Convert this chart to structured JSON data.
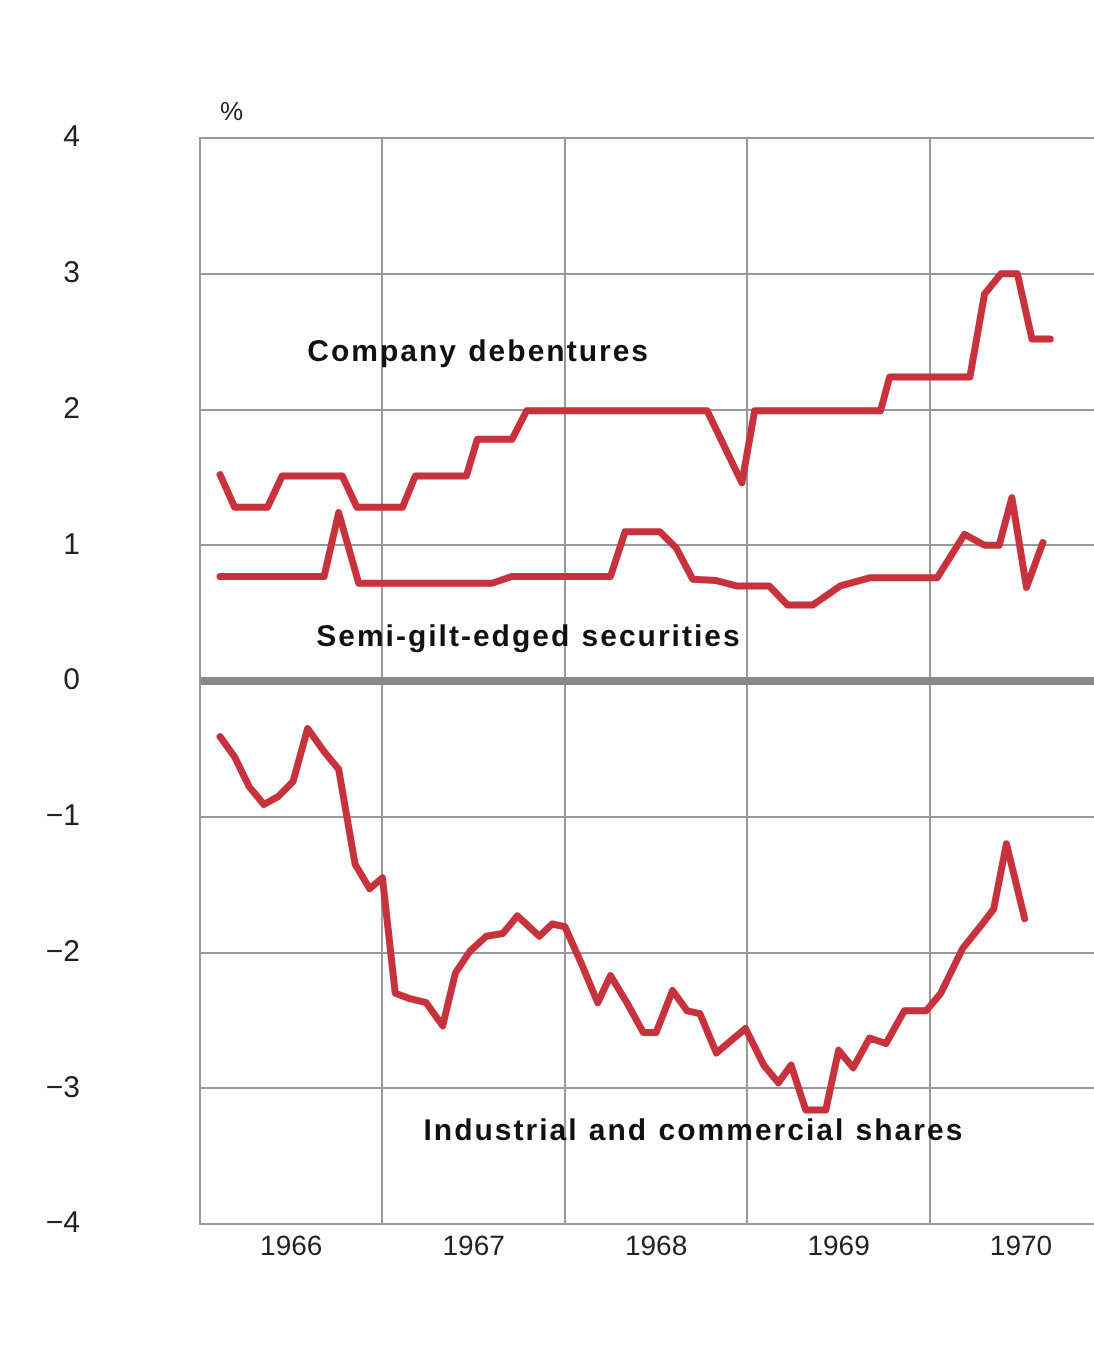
{
  "chart_data": {
    "type": "line",
    "ylabel": "%",
    "xlim": [
      1966,
      1970.9
    ],
    "ylim": [
      -4,
      4
    ],
    "xticks": [
      {
        "value": 1966.5,
        "label": "1966"
      },
      {
        "value": 1967,
        "label": null
      },
      {
        "value": 1967.5,
        "label": "1967"
      },
      {
        "value": 1968,
        "label": null
      },
      {
        "value": 1968.5,
        "label": "1968"
      },
      {
        "value": 1969,
        "label": null
      },
      {
        "value": 1969.5,
        "label": "1969"
      },
      {
        "value": 1970,
        "label": null
      },
      {
        "value": 1970.5,
        "label": "1970"
      }
    ],
    "yticks": [
      -4,
      -3,
      -2,
      -1,
      0,
      1,
      2,
      3,
      4
    ],
    "grid": true,
    "marker": "none",
    "line_style": "solid",
    "series": [
      {
        "name": "Company debentures",
        "color": "#c8323c",
        "x": [
          1966.11,
          1966.19,
          1966.37,
          1966.45,
          1966.78,
          1966.86,
          1967.11,
          1967.18,
          1967.46,
          1967.52,
          1967.71,
          1967.79,
          1968.78,
          1968.97,
          1969.04,
          1969.73,
          1969.78,
          1970.22,
          1970.3,
          1970.39,
          1970.48,
          1970.56,
          1970.66
        ],
        "values": [
          1.52,
          1.28,
          1.28,
          1.51,
          1.51,
          1.28,
          1.28,
          1.51,
          1.51,
          1.78,
          1.78,
          1.99,
          1.99,
          1.46,
          1.99,
          1.99,
          2.24,
          2.24,
          2.85,
          3.0,
          3.0,
          2.52,
          2.52
        ]
      },
      {
        "name": "Semi-gilt-edged securities",
        "color": "#c8323c",
        "x": [
          1966.11,
          1966.68,
          1966.76,
          1966.87,
          1967.6,
          1967.71,
          1968.25,
          1968.33,
          1968.52,
          1968.61,
          1968.7,
          1968.83,
          1968.94,
          1969.12,
          1969.22,
          1969.36,
          1969.51,
          1969.67,
          1970.04,
          1970.19,
          1970.3,
          1970.38,
          1970.45,
          1970.53,
          1970.62
        ],
        "values": [
          0.77,
          0.77,
          1.24,
          0.72,
          0.72,
          0.77,
          0.77,
          1.1,
          1.1,
          0.98,
          0.75,
          0.74,
          0.7,
          0.7,
          0.56,
          0.56,
          0.7,
          0.76,
          0.76,
          1.08,
          1.0,
          1.0,
          1.35,
          0.69,
          1.02
        ]
      },
      {
        "name": "Industrial and commercial shares",
        "color": "#c8323c",
        "x": [
          1966.11,
          1966.19,
          1966.27,
          1966.35,
          1966.43,
          1966.51,
          1966.59,
          1966.68,
          1966.76,
          1966.85,
          1966.93,
          1967.0,
          1967.07,
          1967.15,
          1967.24,
          1967.33,
          1967.4,
          1967.48,
          1967.57,
          1967.66,
          1967.74,
          1967.86,
          1967.93,
          1968.0,
          1968.09,
          1968.18,
          1968.25,
          1968.34,
          1968.43,
          1968.5,
          1968.59,
          1968.67,
          1968.74,
          1968.83,
          1968.99,
          1969.09,
          1969.17,
          1969.24,
          1969.32,
          1969.43,
          1969.5,
          1969.58,
          1969.67,
          1969.76,
          1969.86,
          1969.98,
          1970.06,
          1970.18,
          1970.27,
          1970.35,
          1970.42,
          1970.52
        ],
        "values": [
          -0.41,
          -0.56,
          -0.78,
          -0.91,
          -0.85,
          -0.74,
          -0.35,
          -0.52,
          -0.65,
          -1.35,
          -1.53,
          -1.45,
          -2.3,
          -2.34,
          -2.37,
          -2.54,
          -2.15,
          -1.99,
          -1.88,
          -1.86,
          -1.73,
          -1.88,
          -1.79,
          -1.81,
          -2.08,
          -2.37,
          -2.17,
          -2.37,
          -2.59,
          -2.59,
          -2.28,
          -2.43,
          -2.45,
          -2.74,
          -2.56,
          -2.83,
          -2.96,
          -2.83,
          -3.16,
          -3.16,
          -2.72,
          -2.85,
          -2.63,
          -2.67,
          -2.43,
          -2.43,
          -2.3,
          -1.97,
          -1.82,
          -1.68,
          -1.2,
          -1.75
        ]
      }
    ]
  }
}
